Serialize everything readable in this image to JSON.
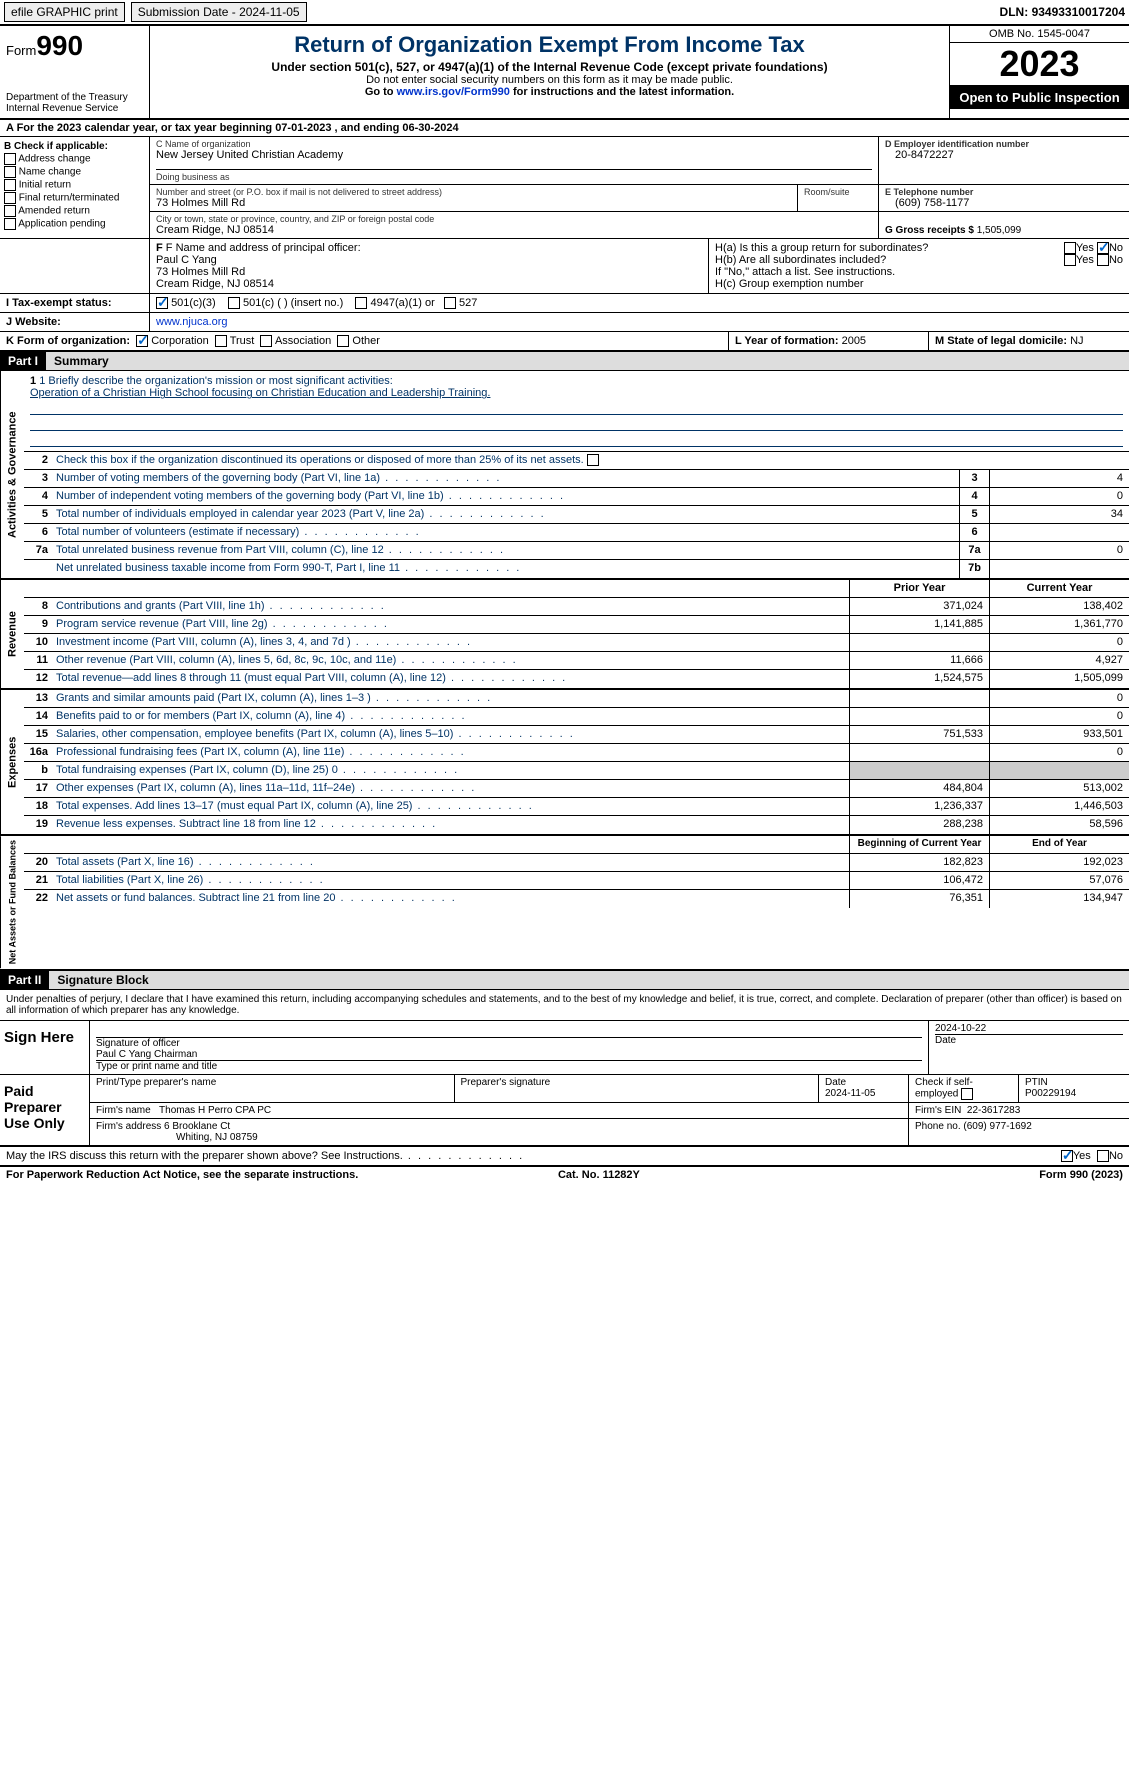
{
  "topbar": {
    "efile": "efile GRAPHIC print",
    "submission": "Submission Date - 2024-11-05",
    "dln_label": "DLN:",
    "dln": "93493310017204"
  },
  "header": {
    "form_prefix": "Form",
    "form_num": "990",
    "dept": "Department of the Treasury Internal Revenue Service",
    "title": "Return of Organization Exempt From Income Tax",
    "sub1": "Under section 501(c), 527, or 4947(a)(1) of the Internal Revenue Code (except private foundations)",
    "sub2": "Do not enter social security numbers on this form as it may be made public.",
    "sub3_pre": "Go to ",
    "sub3_link": "www.irs.gov/Form990",
    "sub3_post": " for instructions and the latest information.",
    "omb": "OMB No. 1545-0047",
    "year": "2023",
    "open": "Open to Public Inspection"
  },
  "lineA": "A For the 2023 calendar year, or tax year beginning 07-01-2023   , and ending 06-30-2024",
  "boxB": {
    "label": "B Check if applicable:",
    "items": [
      "Address change",
      "Name change",
      "Initial return",
      "Final return/terminated",
      "Amended return",
      "Application pending"
    ]
  },
  "boxC": {
    "name_label": "C Name of organization",
    "name": "New Jersey United Christian Academy",
    "dba_label": "Doing business as",
    "dba": "",
    "addr_label": "Number and street (or P.O. box if mail is not delivered to street address)",
    "room_label": "Room/suite",
    "addr": "73 Holmes Mill Rd",
    "city_label": "City or town, state or province, country, and ZIP or foreign postal code",
    "city": "Cream Ridge, NJ  08514"
  },
  "boxD": {
    "label": "D Employer identification number",
    "val": "20-8472227"
  },
  "boxE": {
    "label": "E Telephone number",
    "val": "(609) 758-1177"
  },
  "boxG": {
    "label": "G Gross receipts $",
    "val": "1,505,099"
  },
  "boxF": {
    "label": "F Name and address of principal officer:",
    "name": "Paul C Yang",
    "addr1": "73 Holmes Mill Rd",
    "addr2": "Cream Ridge, NJ  08514"
  },
  "boxH": {
    "ha": "H(a) Is this a group return for subordinates?",
    "hb": "H(b) Are all subordinates included?",
    "hb_note": "If \"No,\" attach a list. See instructions.",
    "hc": "H(c) Group exemption number",
    "yes": "Yes",
    "no": "No"
  },
  "boxI": {
    "label": "I Tax-exempt status:",
    "o1": "501(c)(3)",
    "o2": "501(c) (  ) (insert no.)",
    "o3": "4947(a)(1) or",
    "o4": "527"
  },
  "boxJ": {
    "label": "J Website:",
    "val": "www.njuca.org"
  },
  "boxK": {
    "label": "K Form of organization:",
    "o1": "Corporation",
    "o2": "Trust",
    "o3": "Association",
    "o4": "Other"
  },
  "boxL": {
    "label": "L Year of formation:",
    "val": "2005"
  },
  "boxM": {
    "label": "M State of legal domicile:",
    "val": "NJ"
  },
  "part1": {
    "num": "Part I",
    "title": "Summary"
  },
  "summary": {
    "gov": {
      "label": "Activities & Governance",
      "l1_label": "1 Briefly describe the organization's mission or most significant activities:",
      "l1_val": "Operation of a Christian High School focusing on Christian Education and Leadership Training.",
      "l2": "Check this box      if the organization discontinued its operations or disposed of more than 25% of its net assets.",
      "rows": [
        {
          "n": "3",
          "t": "Number of voting members of the governing body (Part VI, line 1a)",
          "b": "3",
          "v": "4"
        },
        {
          "n": "4",
          "t": "Number of independent voting members of the governing body (Part VI, line 1b)",
          "b": "4",
          "v": "0"
        },
        {
          "n": "5",
          "t": "Total number of individuals employed in calendar year 2023 (Part V, line 2a)",
          "b": "5",
          "v": "34"
        },
        {
          "n": "6",
          "t": "Total number of volunteers (estimate if necessary)",
          "b": "6",
          "v": ""
        },
        {
          "n": "7a",
          "t": "Total unrelated business revenue from Part VIII, column (C), line 12",
          "b": "7a",
          "v": "0"
        },
        {
          "n": "",
          "t": "Net unrelated business taxable income from Form 990-T, Part I, line 11",
          "b": "7b",
          "v": ""
        }
      ]
    },
    "rev": {
      "label": "Revenue",
      "header_prior": "Prior Year",
      "header_curr": "Current Year",
      "rows": [
        {
          "n": "8",
          "t": "Contributions and grants (Part VIII, line 1h)",
          "p": "371,024",
          "c": "138,402"
        },
        {
          "n": "9",
          "t": "Program service revenue (Part VIII, line 2g)",
          "p": "1,141,885",
          "c": "1,361,770"
        },
        {
          "n": "10",
          "t": "Investment income (Part VIII, column (A), lines 3, 4, and 7d )",
          "p": "",
          "c": "0"
        },
        {
          "n": "11",
          "t": "Other revenue (Part VIII, column (A), lines 5, 6d, 8c, 9c, 10c, and 11e)",
          "p": "11,666",
          "c": "4,927"
        },
        {
          "n": "12",
          "t": "Total revenue—add lines 8 through 11 (must equal Part VIII, column (A), line 12)",
          "p": "1,524,575",
          "c": "1,505,099"
        }
      ]
    },
    "exp": {
      "label": "Expenses",
      "rows": [
        {
          "n": "13",
          "t": "Grants and similar amounts paid (Part IX, column (A), lines 1–3 )",
          "p": "",
          "c": "0"
        },
        {
          "n": "14",
          "t": "Benefits paid to or for members (Part IX, column (A), line 4)",
          "p": "",
          "c": "0"
        },
        {
          "n": "15",
          "t": "Salaries, other compensation, employee benefits (Part IX, column (A), lines 5–10)",
          "p": "751,533",
          "c": "933,501"
        },
        {
          "n": "16a",
          "t": "Professional fundraising fees (Part IX, column (A), line 11e)",
          "p": "",
          "c": "0"
        },
        {
          "n": "b",
          "t": "Total fundraising expenses (Part IX, column (D), line 25) 0",
          "p": "grey",
          "c": "grey"
        },
        {
          "n": "17",
          "t": "Other expenses (Part IX, column (A), lines 11a–11d, 11f–24e)",
          "p": "484,804",
          "c": "513,002"
        },
        {
          "n": "18",
          "t": "Total expenses. Add lines 13–17 (must equal Part IX, column (A), line 25)",
          "p": "1,236,337",
          "c": "1,446,503"
        },
        {
          "n": "19",
          "t": "Revenue less expenses. Subtract line 18 from line 12",
          "p": "288,238",
          "c": "58,596"
        }
      ]
    },
    "net": {
      "label": "Net Assets or Fund Balances",
      "header_prior": "Beginning of Current Year",
      "header_curr": "End of Year",
      "rows": [
        {
          "n": "20",
          "t": "Total assets (Part X, line 16)",
          "p": "182,823",
          "c": "192,023"
        },
        {
          "n": "21",
          "t": "Total liabilities (Part X, line 26)",
          "p": "106,472",
          "c": "57,076"
        },
        {
          "n": "22",
          "t": "Net assets or fund balances. Subtract line 21 from line 20",
          "p": "76,351",
          "c": "134,947"
        }
      ]
    }
  },
  "part2": {
    "num": "Part II",
    "title": "Signature Block"
  },
  "penalties": "Under penalties of perjury, I declare that I have examined this return, including accompanying schedules and statements, and to the best of my knowledge and belief, it is true, correct, and complete. Declaration of preparer (other than officer) is based on all information of which preparer has any knowledge.",
  "sign": {
    "label": "Sign Here",
    "sig_officer": "Signature of officer",
    "date_label": "Date",
    "date": "2024-10-22",
    "name": "Paul C Yang Chairman",
    "name_label": "Type or print name and title"
  },
  "preparer": {
    "label": "Paid Preparer Use Only",
    "h1": "Print/Type preparer's name",
    "h2": "Preparer's signature",
    "h3": "Date",
    "h3v": "2024-11-05",
    "h4": "Check      if self-employed",
    "h5": "PTIN",
    "h5v": "P00229194",
    "firm_label": "Firm's name",
    "firm": "Thomas H Perro CPA PC",
    "ein_label": "Firm's EIN",
    "ein": "22-3617283",
    "addr_label": "Firm's address",
    "addr1": "6 Brooklane Ct",
    "addr2": "Whiting, NJ  08759",
    "phone_label": "Phone no.",
    "phone": "(609) 977-1692"
  },
  "discuss": {
    "text": "May the IRS discuss this return with the preparer shown above? See Instructions.",
    "yes": "Yes",
    "no": "No"
  },
  "footer": {
    "left": "For Paperwork Reduction Act Notice, see the separate instructions.",
    "mid": "Cat. No. 11282Y",
    "right": "Form 990 (2023)"
  }
}
